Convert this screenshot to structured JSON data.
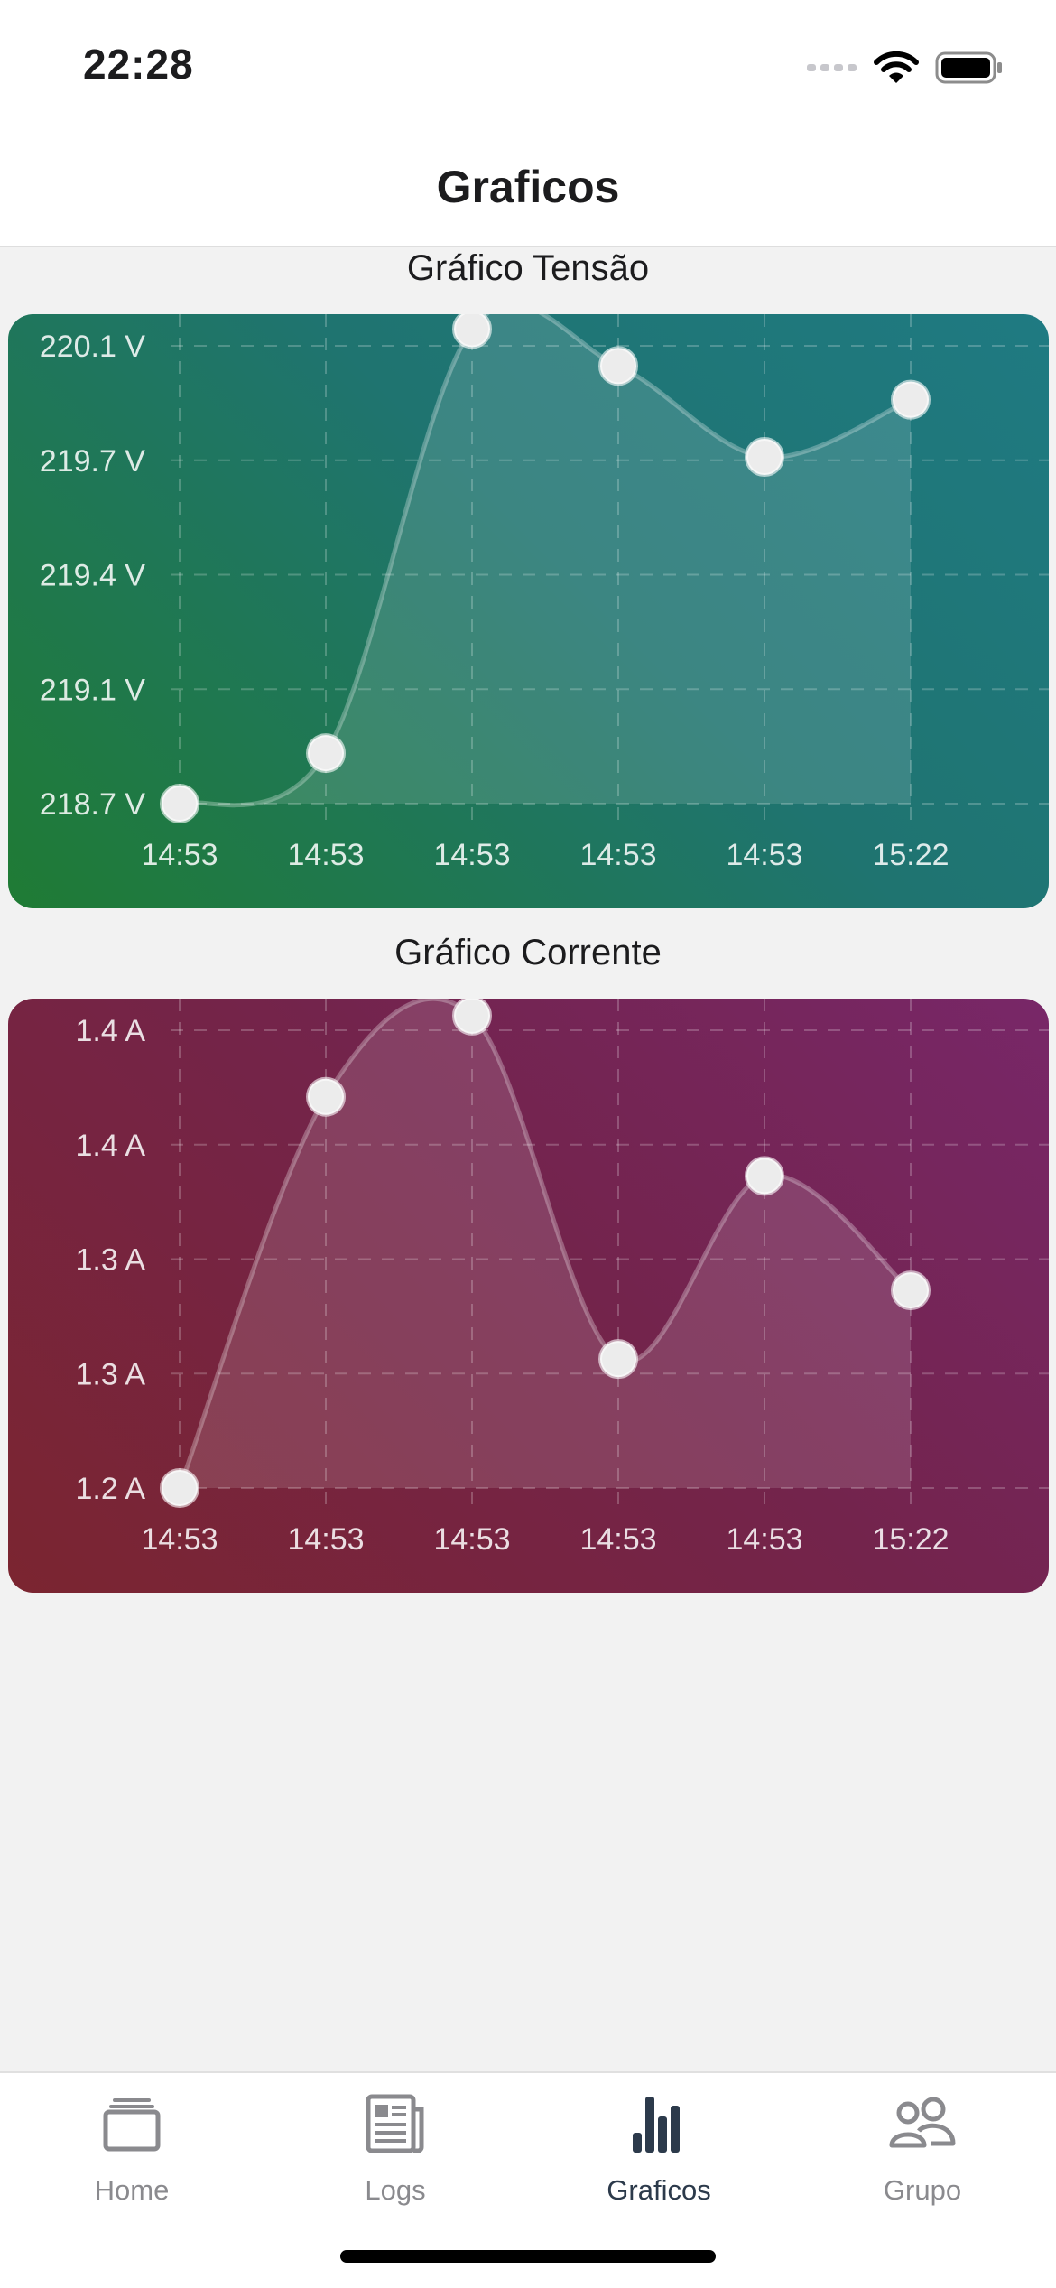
{
  "status_bar": {
    "time": "22:28"
  },
  "header": {
    "title": "Graficos"
  },
  "charts": [
    {
      "title": "Gráfico Tensão",
      "colors": {
        "gradient_start": "#1f7b34",
        "gradient_end": "#1f7a82"
      },
      "chart_data": {
        "type": "line",
        "title": "Gráfico Tensão",
        "categories": [
          "14:53",
          "14:53",
          "14:53",
          "14:53",
          "14:53",
          "15:22"
        ],
        "values": [
          218.7,
          218.85,
          220.11,
          220.0,
          219.73,
          219.9
        ],
        "y_ticks": [
          "220.1 V",
          "219.7 V",
          "219.4 V",
          "219.1 V",
          "218.7 V"
        ],
        "y_tick_values": [
          220.06,
          219.72,
          219.38,
          219.04,
          218.7
        ],
        "ylim": [
          218.7,
          220.06
        ],
        "grid": true,
        "filled": true,
        "smooth": true
      }
    },
    {
      "title": "Gráfico Corrente",
      "colors": {
        "gradient_start": "#7b2530",
        "gradient_end": "#782768"
      },
      "chart_data": {
        "type": "line",
        "title": "Gráfico Corrente",
        "categories": [
          "14:53",
          "14:53",
          "14:53",
          "14:53",
          "14:53",
          "15:22"
        ],
        "values": [
          1.2,
          1.388,
          1.427,
          1.262,
          1.35,
          1.295
        ],
        "y_ticks": [
          "1.4 A",
          "1.4 A",
          "1.3 A",
          "1.3 A",
          "1.2 A"
        ],
        "y_tick_values": [
          1.42,
          1.365,
          1.31,
          1.255,
          1.2
        ],
        "ylim": [
          1.2,
          1.42
        ],
        "grid": true,
        "filled": true,
        "smooth": true
      }
    }
  ],
  "tab_bar": {
    "items": [
      {
        "label": "Home",
        "icon": "home-stack-icon",
        "active": false
      },
      {
        "label": "Logs",
        "icon": "newspaper-icon",
        "active": false
      },
      {
        "label": "Graficos",
        "icon": "bar-chart-icon",
        "active": true
      },
      {
        "label": "Grupo",
        "icon": "group-icon",
        "active": false
      }
    ],
    "colors": {
      "active": "#2c3a4b",
      "inactive": "#8a8a8e"
    }
  }
}
